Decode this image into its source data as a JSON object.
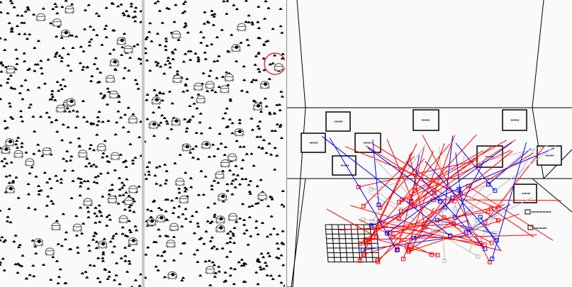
{
  "colors": {
    "background": "#fafafa",
    "dots": "#000000",
    "agents": "#777777",
    "highlight": "#ff0000",
    "link_red": "#ff0000",
    "link_blue": "#0000ff",
    "link_gray": "#bbbbbb",
    "divider": "#c8c8c8"
  },
  "panels": [
    "world-view-left",
    "world-view-right",
    "network-3d-view"
  ]
}
